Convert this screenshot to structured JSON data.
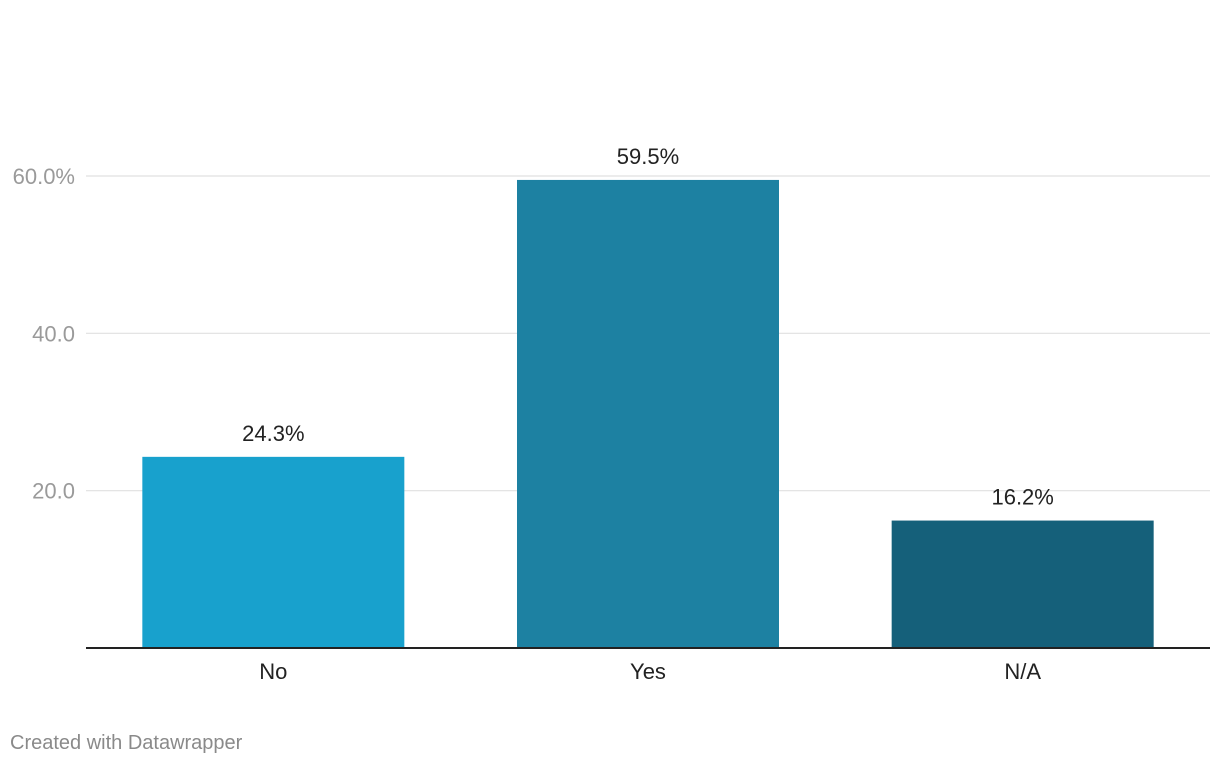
{
  "chart_data": {
    "type": "bar",
    "categories": [
      "No",
      "Yes",
      "N/A"
    ],
    "values": [
      24.3,
      59.5,
      16.2
    ],
    "value_labels": [
      "24.3%",
      "59.5%",
      "16.2%"
    ],
    "colors": [
      "#18a1cd",
      "#1d81a2",
      "#15607a"
    ],
    "yticks": [
      {
        "value": 20,
        "label": "20.0"
      },
      {
        "value": 40,
        "label": "40.0"
      },
      {
        "value": 60,
        "label": "60.0%"
      }
    ],
    "ylim": [
      0,
      60
    ],
    "grid": true,
    "gridline_color": "#e0e0e0",
    "baseline_color": "#222222"
  },
  "footer": {
    "credit": "Created with Datawrapper"
  }
}
